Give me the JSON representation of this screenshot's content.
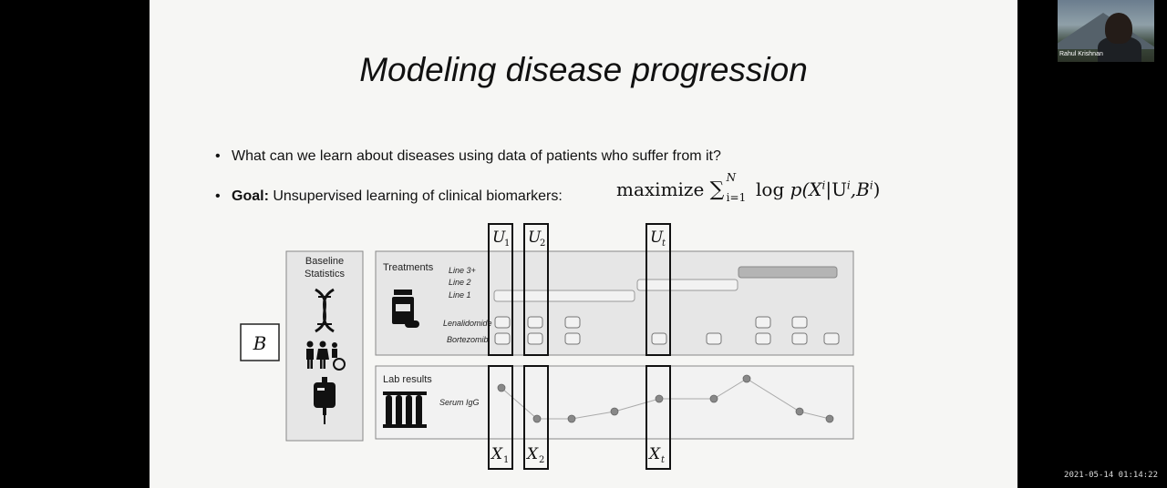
{
  "slide": {
    "title": "Modeling disease progression",
    "bullet1": "What can we learn about diseases using data of patients who suffer from it?",
    "bullet2_bold": "Goal:",
    "bullet2_rest": " Unsupervised learning of clinical biomarkers:",
    "formula": {
      "maximize": "maximize",
      "sum": "∑",
      "upper": "N",
      "lower": "i=1",
      "log": "log",
      "body": "p(X",
      "sup_i1": "i",
      "given": "|U",
      "sup_i2": "i",
      "tail": ",B",
      "sup_i3": "i",
      "close": ")"
    }
  },
  "diagram": {
    "baseline_label_1": "Baseline",
    "baseline_label_2": "Statistics",
    "b_label": "B",
    "treatments_label": "Treatments",
    "line3": "Line 3+",
    "line2": "Line 2",
    "line1": "Line 1",
    "drug1": "Lenalidomide",
    "drug2": "Bortezomib",
    "lab_label": "Lab results",
    "serum": "Serum IgG",
    "u1": "U",
    "u1_sub": "1",
    "u2": "U",
    "u2_sub": "2",
    "ut": "U",
    "ut_sub": "t",
    "x1": "X",
    "x1_sub": "1",
    "x2": "X",
    "x2_sub": "2",
    "xt": "X",
    "xt_sub": "t"
  },
  "webcam": {
    "name": "Rahul Krishnan"
  },
  "timestamp": "2021-05-14 01:14:22",
  "colors": {
    "slide_bg": "#f6f6f4",
    "panel_bg": "#e6e6e6",
    "line3_bar": "#b4b4b4"
  }
}
